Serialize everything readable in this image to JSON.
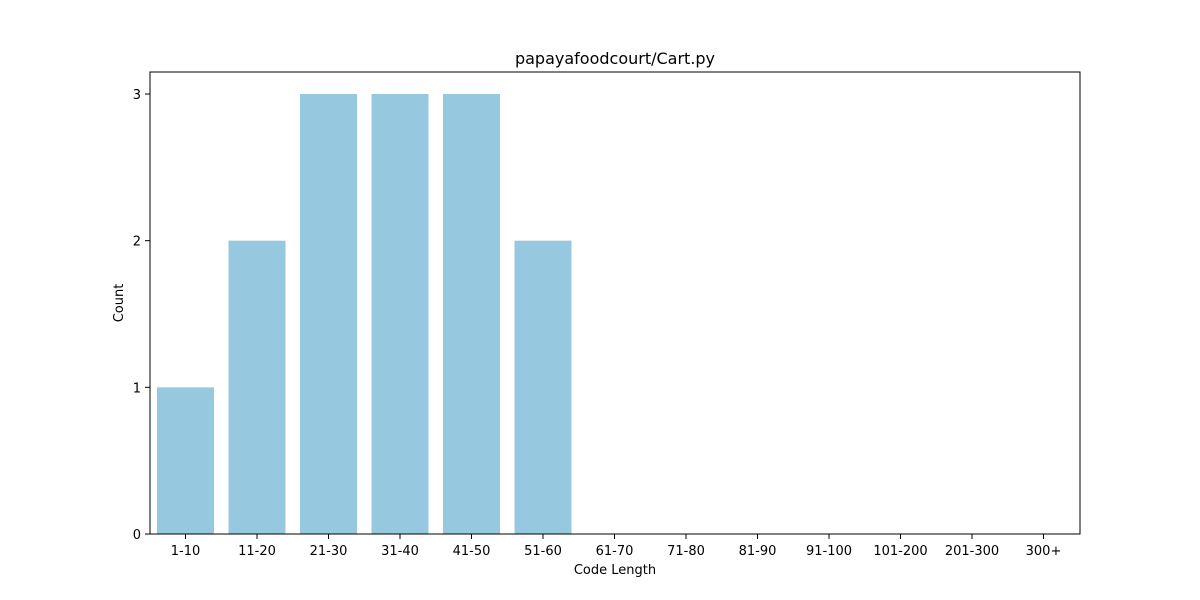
{
  "chart_data": {
    "type": "bar",
    "title": "papayafoodcourt/Cart.py",
    "xlabel": "Code Length",
    "ylabel": "Count",
    "categories": [
      "1-10",
      "11-20",
      "21-30",
      "31-40",
      "41-50",
      "51-60",
      "61-70",
      "71-80",
      "81-90",
      "91-100",
      "101-200",
      "201-300",
      "300+"
    ],
    "values": [
      1,
      2,
      3,
      3,
      3,
      2,
      0,
      0,
      0,
      0,
      0,
      0,
      0
    ],
    "yticks": [
      0,
      1,
      2,
      3
    ],
    "ylim": [
      0,
      3.15
    ],
    "grid": false,
    "bar_color": "#96c9df"
  }
}
